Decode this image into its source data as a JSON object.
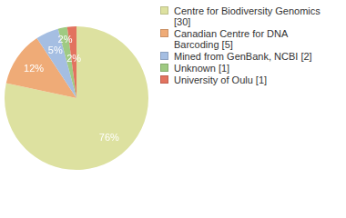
{
  "chart_data": {
    "type": "pie",
    "categories": [
      "Centre for Biodiversity Genomics [30]",
      "Canadian Centre for DNA Barcoding [5]",
      "Mined from GenBank, NCBI [2]",
      "Unknown [1]",
      "University of Oulu [1]"
    ],
    "values": [
      76,
      12,
      5,
      2,
      2
    ],
    "value_labels": [
      "76%",
      "12%",
      "5%",
      "2%",
      "2%"
    ],
    "colors": [
      "#dde1a0",
      "#efab77",
      "#a5bee2",
      "#9fca82",
      "#e2735f"
    ],
    "data_labels": true,
    "legend": "right"
  }
}
